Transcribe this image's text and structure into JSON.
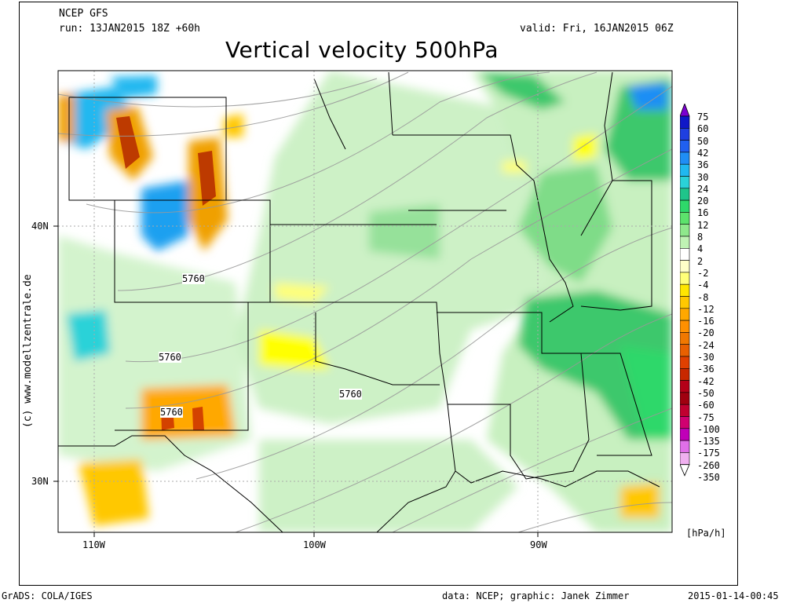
{
  "header": {
    "model": "NCEP GFS",
    "run": "run: 13JAN2015 18Z +60h",
    "valid": "valid: Fri, 16JAN2015 06Z",
    "title": "Vertical velocity 500hPa"
  },
  "credit": "(c) www.modellzentrale.de",
  "footer": {
    "software": "GrADS: COLA/IGES",
    "source": "data: NCEP; graphic: Janek Zimmer",
    "timestamp": "2015-01-14-00:45"
  },
  "axes": {
    "lon_labels": [
      "110W",
      "100W",
      "90W"
    ],
    "lat_labels": [
      "40N",
      "30N"
    ]
  },
  "contour_labels": [
    "5760",
    "5760",
    "5760",
    "5760"
  ],
  "colorbar": {
    "unit": "[hPa/h]",
    "levels": [
      "75",
      "60",
      "50",
      "42",
      "36",
      "30",
      "24",
      "20",
      "16",
      "12",
      "8",
      "4",
      "2",
      "-2",
      "-4",
      "-8",
      "-12",
      "-16",
      "-20",
      "-24",
      "-30",
      "-36",
      "-42",
      "-50",
      "-60",
      "-75",
      "-100",
      "-135",
      "-175",
      "-260",
      "-350"
    ],
    "colors": [
      "#7b00d0",
      "#1018c8",
      "#1f3fe0",
      "#2060f0",
      "#1f8ef5",
      "#20b8f0",
      "#2ad2d8",
      "#1fc48a",
      "#2ed86a",
      "#5ce26c",
      "#8fe88c",
      "#bff2b4",
      "#ffffff",
      "#ffffc8",
      "#ffff78",
      "#ffe600",
      "#ffc800",
      "#ffa800",
      "#ff9000",
      "#f07800",
      "#e86000",
      "#e04000",
      "#c82800",
      "#b40018",
      "#a00010",
      "#c00030",
      "#d00070",
      "#c000b8",
      "#e070e8",
      "#f0b0f0"
    ]
  },
  "colors": {
    "land_background": "#ffffff",
    "weak_ascent_green": "#c8f0c0",
    "ascent_green": "#7fdc88",
    "strong_ascent_green": "#3ec86c",
    "subsidence_yellow": "#ffff00",
    "subsidence_orange": "#f0a000",
    "subsidence_red": "#b42800",
    "ascent_blue": "#1ea0f0"
  }
}
